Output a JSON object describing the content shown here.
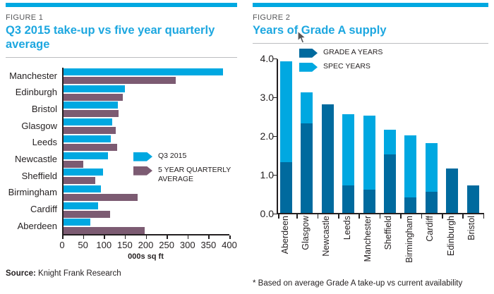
{
  "figure1": {
    "label": "FIGURE 1",
    "source_label": "Source:",
    "source_text": " Knight Frank Research"
  },
  "figure2": {
    "label": "FIGURE 2",
    "footnote": "* Based on average Grade A take-up vs current availability"
  },
  "colors": {
    "accent_cyan": "#00a8e1",
    "purple": "#7c5b72",
    "dark_blue": "#006a9e",
    "title_blue": "#1da7e0",
    "figure_label_gray": "#58595b",
    "text_black": "#231f20"
  },
  "chart_data": [
    {
      "type": "bar",
      "orientation": "horizontal",
      "title": "Q3 2015 take-up vs five year quarterly average",
      "categories": [
        "Manchester",
        "Edinburgh",
        "Bristol",
        "Glasgow",
        "Leeds",
        "Newcastle",
        "Sheffield",
        "Birmingham",
        "Cardiff",
        "Aberdeen"
      ],
      "series": [
        {
          "name": "Q3 2015",
          "color": "#00a8e1",
          "values": [
            385,
            148,
            131,
            118,
            114,
            108,
            95,
            90,
            83,
            65
          ]
        },
        {
          "name": "5 YEAR QUARTERLY AVERAGE",
          "color": "#7c5b72",
          "values": [
            270,
            143,
            132,
            126,
            129,
            48,
            77,
            178,
            113,
            195
          ]
        }
      ],
      "xlabel": "000s sq ft",
      "xlim": [
        0,
        400
      ],
      "xticks": [
        0,
        50,
        100,
        150,
        200,
        250,
        300,
        350,
        400
      ],
      "legend_position": "inside-right-middle",
      "grid": false
    },
    {
      "type": "bar",
      "stacked": true,
      "title": "Years of Grade A supply",
      "categories": [
        "Aberdeen",
        "Glasgow",
        "Newcastle",
        "Leeds",
        "Manchester",
        "Sheffield",
        "Birmingham",
        "Cardiff",
        "Edinburgh",
        "Bristol"
      ],
      "series": [
        {
          "name": "GRADE A YEARS",
          "color": "#006a9e",
          "values": [
            1.3,
            2.3,
            2.8,
            0.7,
            0.6,
            1.5,
            0.4,
            0.55,
            1.15,
            0.7
          ]
        },
        {
          "name": "SPEC YEARS",
          "color": "#00a8e1",
          "values": [
            2.6,
            0.8,
            0,
            1.85,
            1.9,
            0.65,
            1.6,
            1.25,
            0,
            0
          ]
        }
      ],
      "totals": [
        3.9,
        3.1,
        2.8,
        2.55,
        2.5,
        2.15,
        2.0,
        1.8,
        1.15,
        0.7
      ],
      "ylim": [
        0,
        4.0
      ],
      "yticks": [
        "4.0",
        "3.0",
        "2.0",
        "1.0",
        "0.0"
      ],
      "legend_position": "inside-top-left",
      "grid": false
    }
  ]
}
